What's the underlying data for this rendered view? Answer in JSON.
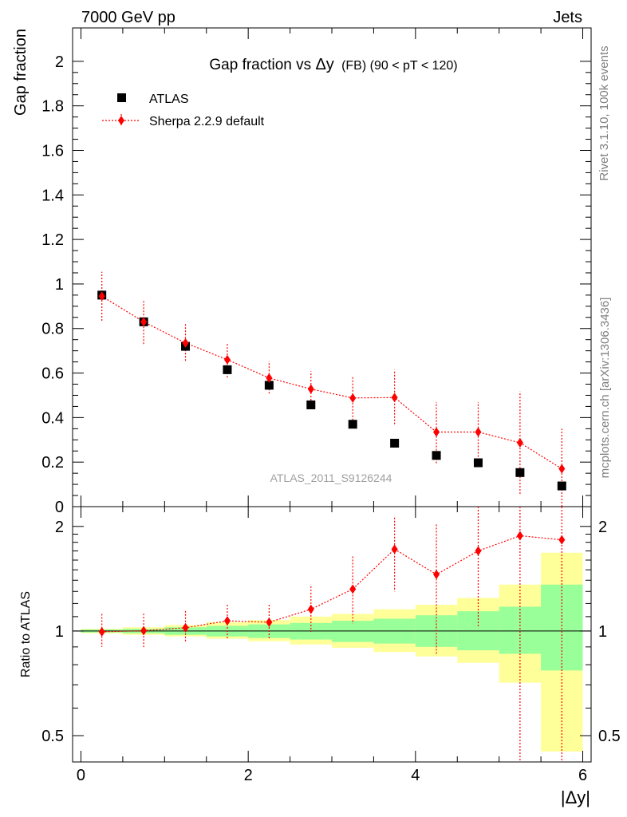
{
  "header": {
    "left_label": "7000 GeV pp",
    "right_label": "Jets"
  },
  "side_labels": {
    "rivet": "Rivet 3.1.10,  100k events",
    "mcplots": "mcplots.cern.ch [arXiv:1306.3436]"
  },
  "colors": {
    "data": "#000000",
    "mc": "#ff0000",
    "band_inner": "#99ff99",
    "band_outer": "#ffff99",
    "watermark": "#a0a0a0"
  },
  "chart_data": [
    {
      "type": "scatter",
      "title_main": "Gap fraction vs",
      "title_var": "Δy",
      "title_tail": "(FB) (90 < pT < 120)",
      "ylabel": "Gap fraction",
      "watermark": "ATLAS_2011_S9126244",
      "xlim": [
        -0.1,
        6.1
      ],
      "ylim": [
        0,
        2.15
      ],
      "yticks": [
        0,
        0.2,
        0.4,
        0.6,
        0.8,
        1,
        1.2,
        1.4,
        1.6,
        1.8,
        2
      ],
      "ytick_labels": [
        "0",
        "0.2",
        "0.4",
        "0.6",
        "0.8",
        "1",
        "1.2",
        "1.4",
        "1.6",
        "1.8",
        "2"
      ],
      "legend": [
        {
          "label": "ATLAS",
          "marker": "square"
        },
        {
          "label": "Sherpa 2.2.9 default",
          "marker": "diamond"
        }
      ],
      "x": [
        0.25,
        0.75,
        1.25,
        1.75,
        2.25,
        2.75,
        3.25,
        3.75,
        4.25,
        4.75,
        5.25,
        5.75
      ],
      "series": [
        {
          "name": "ATLAS",
          "values": [
            0.95,
            0.83,
            0.72,
            0.615,
            0.545,
            0.457,
            0.37,
            0.285,
            0.23,
            0.197,
            0.153,
            0.093
          ],
          "err_lo": [
            0.01,
            0.01,
            0.01,
            0.01,
            0.01,
            0.01,
            0.01,
            0.01,
            0.01,
            0.01,
            0.01,
            0.01
          ],
          "err_hi": [
            0.01,
            0.01,
            0.01,
            0.01,
            0.01,
            0.01,
            0.01,
            0.01,
            0.01,
            0.01,
            0.01,
            0.01
          ]
        },
        {
          "name": "Sherpa 2.2.9 default",
          "values": [
            0.945,
            0.83,
            0.735,
            0.66,
            0.578,
            0.528,
            0.488,
            0.49,
            0.335,
            0.335,
            0.287,
            0.17
          ],
          "err_lo": [
            0.11,
            0.1,
            0.08,
            0.08,
            0.07,
            0.08,
            0.1,
            0.12,
            0.14,
            0.14,
            0.23,
            0.17
          ],
          "err_hi": [
            0.11,
            0.1,
            0.085,
            0.075,
            0.075,
            0.08,
            0.1,
            0.125,
            0.135,
            0.135,
            0.23,
            0.18
          ]
        }
      ]
    },
    {
      "type": "scatter",
      "ylabel": "Ratio to ATLAS",
      "xlabel": "|Δy|",
      "xlim": [
        -0.1,
        6.1
      ],
      "ylim": [
        0.42,
        2.28
      ],
      "xticks": [
        0,
        2,
        4,
        6
      ],
      "xtick_labels": [
        "0",
        "2",
        "4",
        "6"
      ],
      "yticks": [
        0.5,
        1,
        2
      ],
      "ytick_labels": [
        "0.5",
        "1",
        "2"
      ],
      "reference": 1,
      "band_edges": [
        0,
        0.5,
        1,
        1.5,
        2,
        2.5,
        3,
        3.5,
        4,
        4.5,
        5,
        5.5,
        6
      ],
      "band_inner": [
        [
          0.99,
          1.01
        ],
        [
          0.985,
          1.015
        ],
        [
          0.975,
          1.025
        ],
        [
          0.965,
          1.035
        ],
        [
          0.955,
          1.045
        ],
        [
          0.945,
          1.055
        ],
        [
          0.93,
          1.07
        ],
        [
          0.92,
          1.085
        ],
        [
          0.9,
          1.11
        ],
        [
          0.88,
          1.14
        ],
        [
          0.86,
          1.175
        ],
        [
          0.77,
          1.36
        ]
      ],
      "band_outer": [
        [
          0.985,
          1.015
        ],
        [
          0.975,
          1.025
        ],
        [
          0.965,
          1.04
        ],
        [
          0.95,
          1.06
        ],
        [
          0.935,
          1.075
        ],
        [
          0.915,
          1.1
        ],
        [
          0.895,
          1.12
        ],
        [
          0.87,
          1.155
        ],
        [
          0.845,
          1.19
        ],
        [
          0.81,
          1.245
        ],
        [
          0.71,
          1.36
        ],
        [
          0.45,
          1.68
        ]
      ],
      "series": [
        {
          "name": "Sherpa 2.2.9 default",
          "values": [
            0.995,
            1.002,
            1.022,
            1.07,
            1.06,
            1.155,
            1.32,
            1.72,
            1.455,
            1.7,
            1.88,
            1.83
          ],
          "err_lo": [
            0.095,
            0.11,
            0.095,
            0.12,
            0.11,
            0.16,
            0.27,
            0.42,
            0.6,
            0.68,
            1.5,
            1.83
          ],
          "err_hi": [
            0.125,
            0.12,
            0.12,
            0.12,
            0.13,
            0.19,
            0.32,
            0.4,
            0.57,
            0.64,
            0.5,
            0.5
          ]
        }
      ]
    }
  ]
}
